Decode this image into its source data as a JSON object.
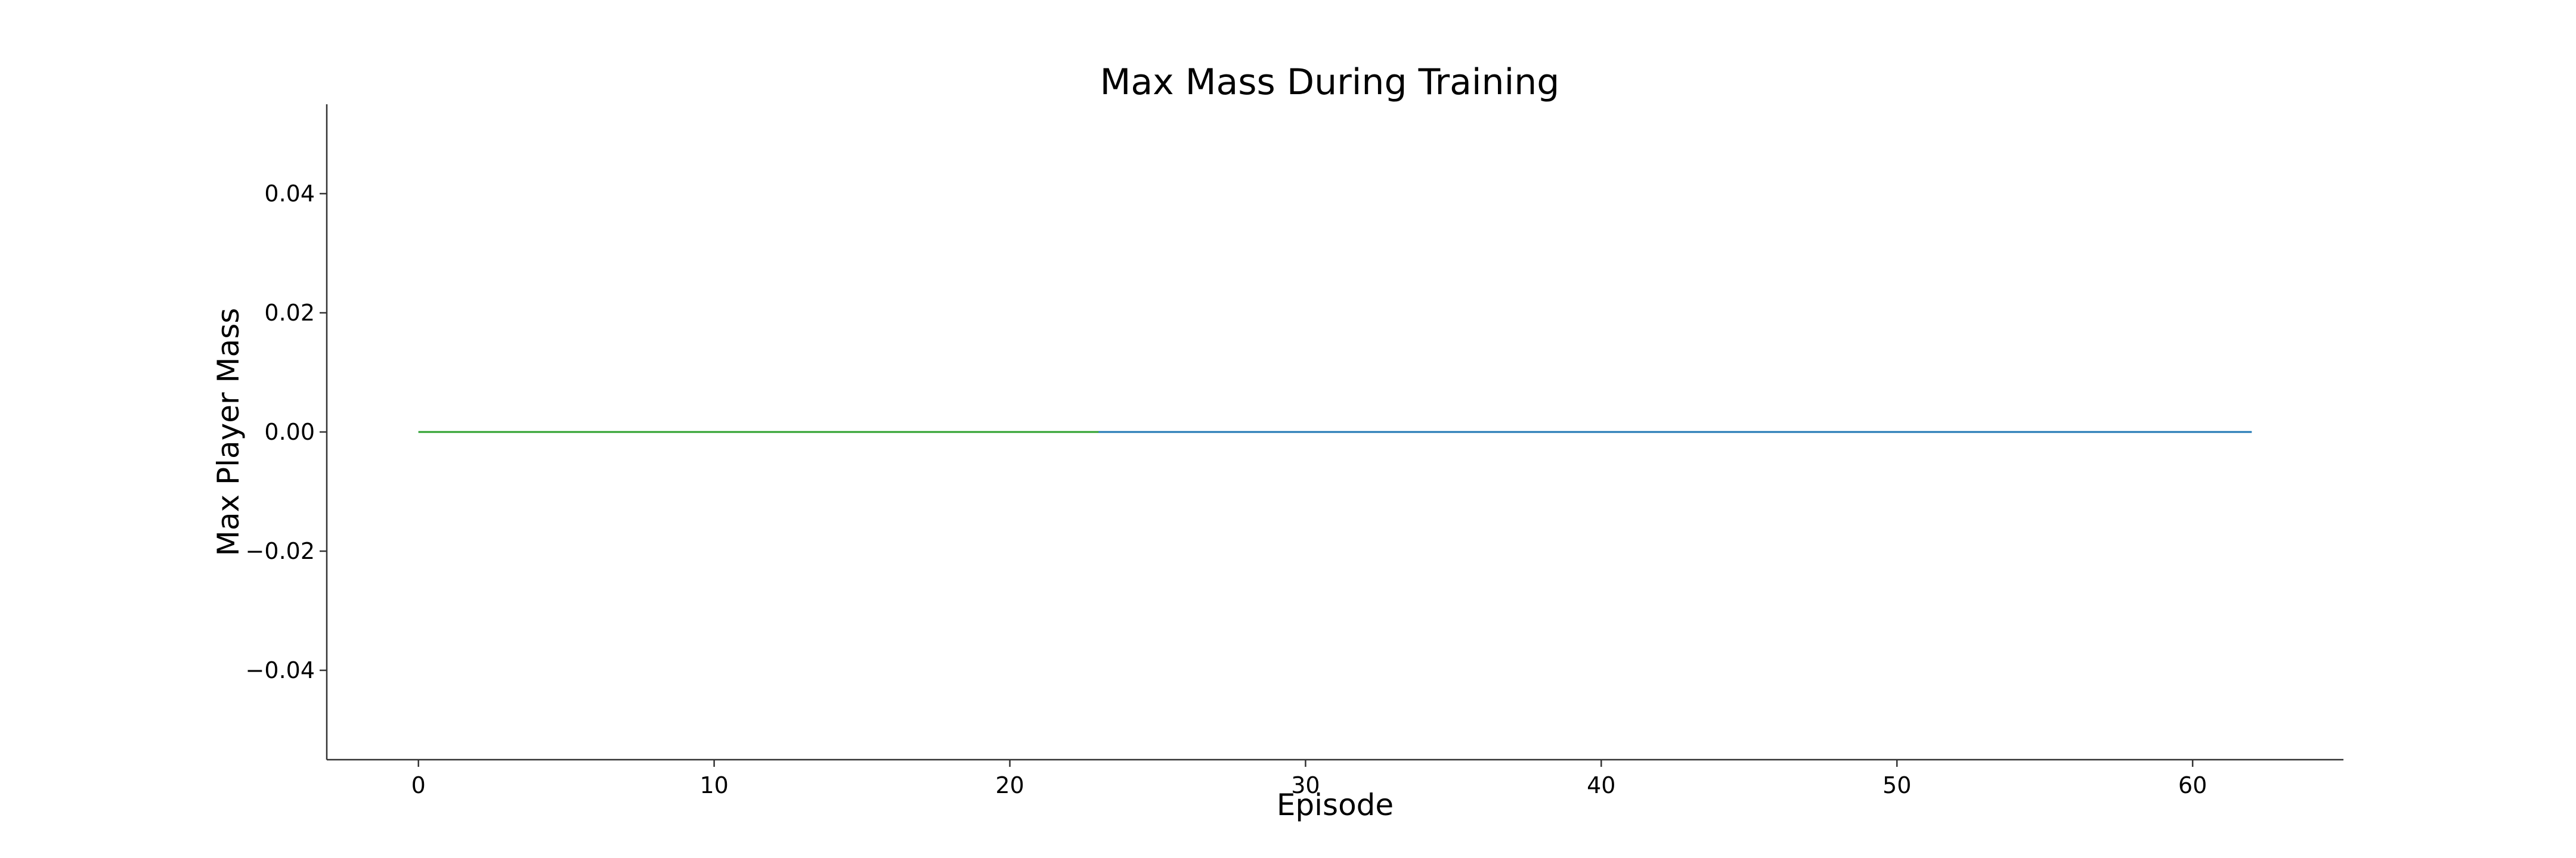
{
  "chart_data": {
    "type": "line",
    "title": "Max Mass During Training",
    "xlabel": "Episode",
    "ylabel": "Max Player Mass",
    "xlim": [
      -3.1,
      65.1
    ],
    "ylim": [
      -0.055,
      0.055
    ],
    "xticks": [
      0,
      10,
      20,
      30,
      40,
      50,
      60
    ],
    "yticks": [
      0.04,
      0.02,
      0.0,
      -0.02,
      -0.04
    ],
    "xtick_labels": [
      "0",
      "10",
      "20",
      "30",
      "40",
      "50",
      "60"
    ],
    "ytick_labels": [
      "0.04",
      "0.02",
      "0.00",
      "−0.02",
      "−0.04"
    ],
    "grid": false,
    "spines": [
      "left",
      "bottom"
    ],
    "series": [
      {
        "color": "#1f77b4",
        "x": [
          0,
          62
        ],
        "y": [
          0,
          0
        ]
      },
      {
        "color": "#2ca02c",
        "x": [
          0,
          23
        ],
        "y": [
          0,
          0
        ]
      }
    ]
  }
}
